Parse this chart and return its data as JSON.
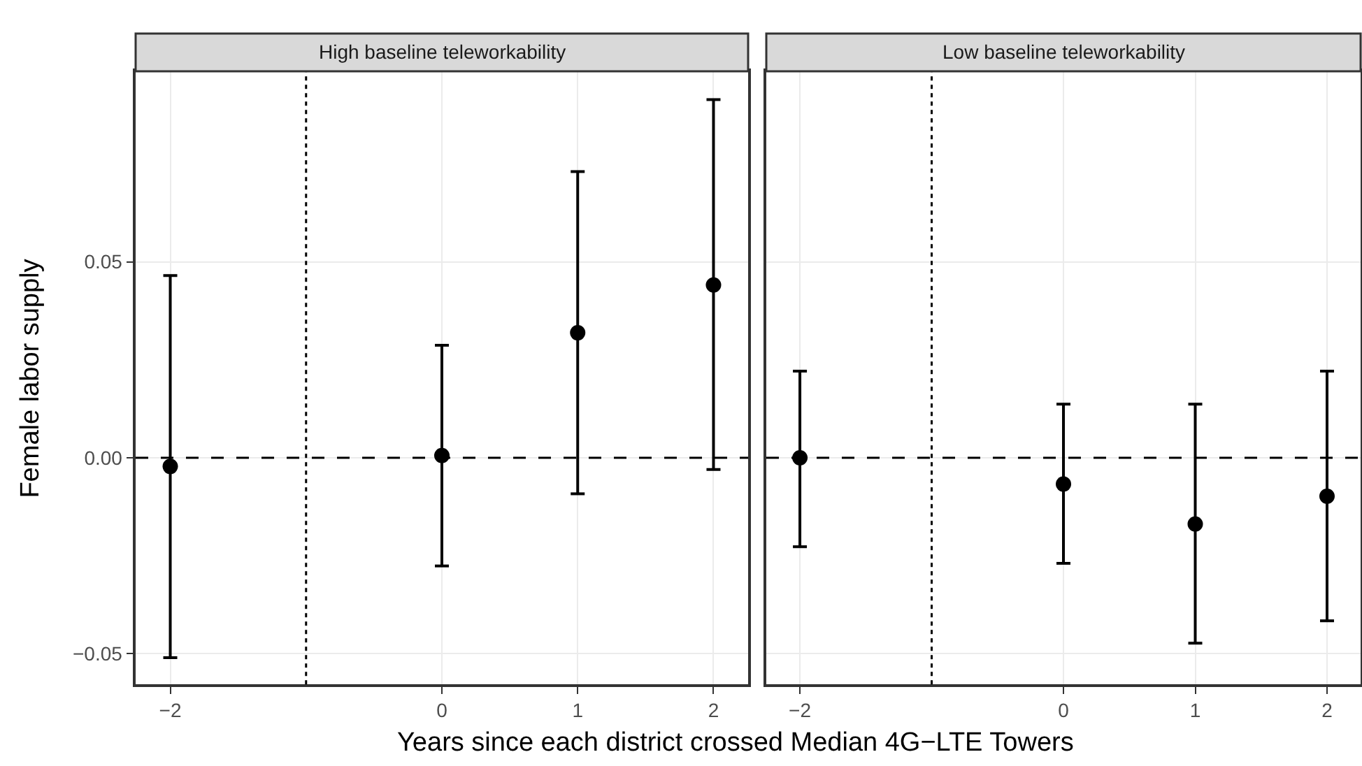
{
  "chart_data": [
    {
      "type": "scatter",
      "title": "High baseline teleworkability",
      "xlabel": "Years since each district crossed Median 4G−LTE Towers",
      "ylabel": "Female labor supply",
      "x": [
        -2,
        0,
        1,
        2
      ],
      "series": [
        {
          "color": "#000000",
          "values": [
            -0.0022,
            0.0006,
            0.0319,
            0.0441
          ],
          "errors": [
            [
              -0.051,
              0.0465
            ],
            [
              -0.0276,
              0.0287
            ],
            [
              -0.0092,
              0.073
            ],
            [
              -0.003,
              0.0914
            ]
          ]
        }
      ],
      "xlim": [
        -2.255,
        2.255
      ],
      "xticks": [
        {
          "value": -2,
          "label": "−2"
        },
        0,
        1,
        2
      ],
      "ylim": [
        -0.0578,
        0.0986
      ],
      "yticks": [
        {
          "value": -0.05,
          "label": "−0.05"
        },
        {
          "value": 0,
          "label": "0.00"
        },
        0.05
      ],
      "ref_lines": [
        {
          "axis": "y",
          "value": 0,
          "line_style": "dashed",
          "color": "#000000"
        },
        {
          "axis": "x",
          "value": -1,
          "line_style": "dotted",
          "color": "#000000"
        }
      ],
      "grid": true,
      "marker": "circle"
    },
    {
      "type": "scatter",
      "title": "Low baseline teleworkability",
      "x": [
        -2,
        0,
        1,
        2
      ],
      "series": [
        {
          "color": "#000000",
          "values": [
            0.0,
            -0.0067,
            -0.0169,
            -0.0098
          ],
          "errors": [
            [
              -0.0227,
              0.0221
            ],
            [
              -0.0269,
              0.0137
            ],
            [
              -0.0473,
              0.0137
            ],
            [
              -0.0416,
              0.0221
            ]
          ]
        }
      ],
      "xlim": [
        -2.255,
        2.255
      ],
      "xticks": [
        {
          "value": -2,
          "label": "−2"
        },
        0,
        1,
        2
      ],
      "ylim": [
        -0.0578,
        0.0986
      ],
      "yticks": [
        -0.05,
        0,
        0.05
      ],
      "ref_lines": [
        {
          "axis": "y",
          "value": 0,
          "line_style": "dashed",
          "color": "#000000"
        },
        {
          "axis": "x",
          "value": -1,
          "line_style": "dotted",
          "color": "#000000"
        }
      ],
      "grid": true,
      "marker": "circle",
      "tick_labels": "x"
    }
  ]
}
